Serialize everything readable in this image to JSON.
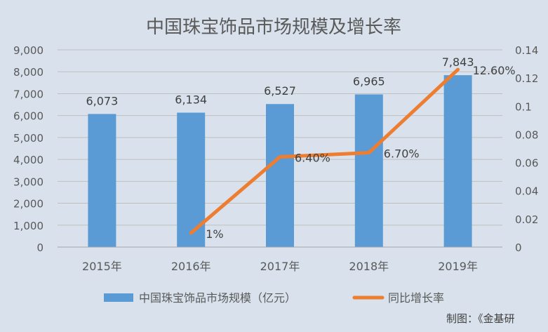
{
  "chart_data": {
    "type": "bar",
    "title": "中国珠宝饰品市场规模及增长率",
    "categories": [
      "2015年",
      "2016年",
      "2017年",
      "2018年",
      "2019年"
    ],
    "series": [
      {
        "name": "中国珠宝饰品市场规模（亿元）",
        "type": "bar",
        "axis": "left",
        "values": [
          6073,
          6134,
          6527,
          6965,
          7843
        ],
        "labels": [
          "6,073",
          "6,134",
          "6,527",
          "6,965",
          "7,843"
        ],
        "color": "#5b9bd5"
      },
      {
        "name": "同比增长率",
        "type": "line",
        "axis": "right",
        "values": [
          null,
          0.01,
          0.064,
          0.067,
          0.126
        ],
        "labels": [
          "",
          "1%",
          "6.40%",
          "6.70%",
          "12.60%"
        ],
        "color": "#ed7d31"
      }
    ],
    "y_left": {
      "ylim": [
        0,
        9000
      ],
      "ticks": [
        "0",
        "1,000",
        "2,000",
        "3,000",
        "4,000",
        "5,000",
        "6,000",
        "7,000",
        "8,000",
        "9,000"
      ]
    },
    "y_right": {
      "ylim": [
        0,
        0.14
      ],
      "ticks": [
        "0",
        "0.02",
        "0.04",
        "0.06",
        "0.08",
        "0.1",
        "0.12",
        "0.14"
      ]
    },
    "grid": true,
    "legend_position": "bottom"
  },
  "source_note": "制图：《金基研"
}
